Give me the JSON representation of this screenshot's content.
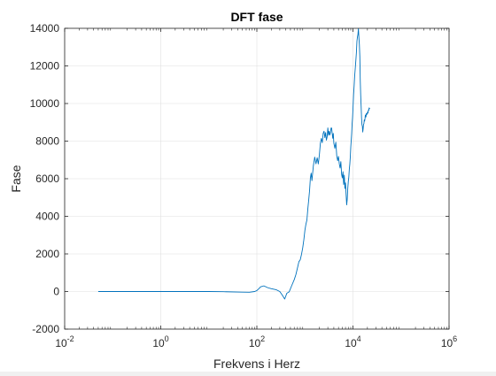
{
  "chart_data": {
    "type": "line",
    "title": "DFT fase",
    "xlabel": "Frekvens i Herz",
    "ylabel": "Fase",
    "x_scale": "log",
    "xlim": [
      0.01,
      1000000
    ],
    "ylim": [
      -2000,
      14000
    ],
    "grid": true,
    "x_ticks": [
      {
        "base": "10",
        "exp": "-2"
      },
      {
        "base": "10",
        "exp": "0"
      },
      {
        "base": "10",
        "exp": "2"
      },
      {
        "base": "10",
        "exp": "4"
      },
      {
        "base": "10",
        "exp": "6"
      }
    ],
    "x_tick_values": [
      0.01,
      1,
      100,
      10000,
      1000000
    ],
    "y_ticks": [
      "-2000",
      "0",
      "2000",
      "4000",
      "6000",
      "8000",
      "10000",
      "12000",
      "14000"
    ],
    "y_tick_values": [
      -2000,
      0,
      2000,
      4000,
      6000,
      8000,
      10000,
      12000,
      14000
    ],
    "series": [
      {
        "color": "#0072bd",
        "x": [
          0.05,
          0.1,
          0.5,
          1,
          5,
          10,
          20,
          50,
          70,
          90,
          100,
          110,
          120,
          140,
          170,
          200,
          250,
          300,
          340,
          380,
          420,
          470,
          530,
          600,
          650,
          700,
          750,
          800,
          850,
          900,
          950,
          1000,
          1050,
          1100,
          1150,
          1200,
          1250,
          1300,
          1350,
          1400,
          1500,
          1600,
          1700,
          1800,
          1900,
          2000,
          2100,
          2200,
          2300,
          2400,
          2500,
          2600,
          2700,
          2800,
          2900,
          3000,
          3100,
          3200,
          3300,
          3400,
          3500,
          3600,
          3700,
          3800,
          3900,
          4000,
          4200,
          4400,
          4600,
          4800,
          5000,
          5200,
          5400,
          5600,
          5800,
          6000,
          6200,
          6400,
          6600,
          6800,
          7000,
          7200,
          7400,
          7600,
          7800,
          8000,
          8200,
          8400,
          8600,
          8800,
          9000,
          9200,
          9400,
          9600,
          9800,
          10000,
          10300,
          10600,
          10900,
          11200,
          11500,
          11800,
          12100,
          12400,
          12700,
          13000,
          13300,
          13600,
          13900,
          14200,
          14500,
          14800,
          15100,
          15400,
          15700,
          16000,
          16300,
          16600,
          16900,
          17200,
          17500,
          17800,
          18100,
          18400,
          18700,
          19000,
          19300,
          19600,
          19900,
          20200,
          20500,
          20800,
          21100,
          21400,
          21700,
          22000,
          22500
        ],
        "y": [
          0,
          0,
          0,
          0,
          0,
          0,
          -10,
          -30,
          -40,
          0,
          50,
          150,
          250,
          300,
          200,
          150,
          100,
          0,
          -200,
          -400,
          -200,
          0,
          300,
          600,
          1000,
          1300,
          1600,
          1800,
          2000,
          2300,
          2800,
          3200,
          3500,
          3800,
          4300,
          4800,
          5400,
          6000,
          6300,
          6000,
          6700,
          7200,
          6900,
          7100,
          6800,
          7300,
          7800,
          8100,
          7900,
          8300,
          8500,
          8200,
          8400,
          8100,
          8300,
          8700,
          8400,
          8600,
          8300,
          8500,
          8700,
          8600,
          8400,
          8100,
          8300,
          7900,
          7600,
          7900,
          7300,
          7000,
          7200,
          6900,
          6600,
          6900,
          6300,
          6000,
          6300,
          5700,
          6100,
          5400,
          5800,
          5100,
          4600,
          5000,
          5500,
          5900,
          6200,
          6500,
          6800,
          7200,
          7600,
          8000,
          8400,
          8800,
          9200,
          9700,
          10400,
          11000,
          11600,
          11900,
          12400,
          12800,
          13300,
          13600,
          13700,
          13900,
          13500,
          13100,
          12400,
          11200,
          10400,
          9800,
          9300,
          8900,
          8800,
          8600,
          8700,
          8900,
          9000,
          9100,
          9000,
          9200,
          9300,
          9200,
          9300,
          9400,
          9400,
          9500,
          9500,
          9600,
          9600,
          9600,
          9700,
          9700,
          9700,
          9700,
          9750
        ]
      }
    ]
  }
}
